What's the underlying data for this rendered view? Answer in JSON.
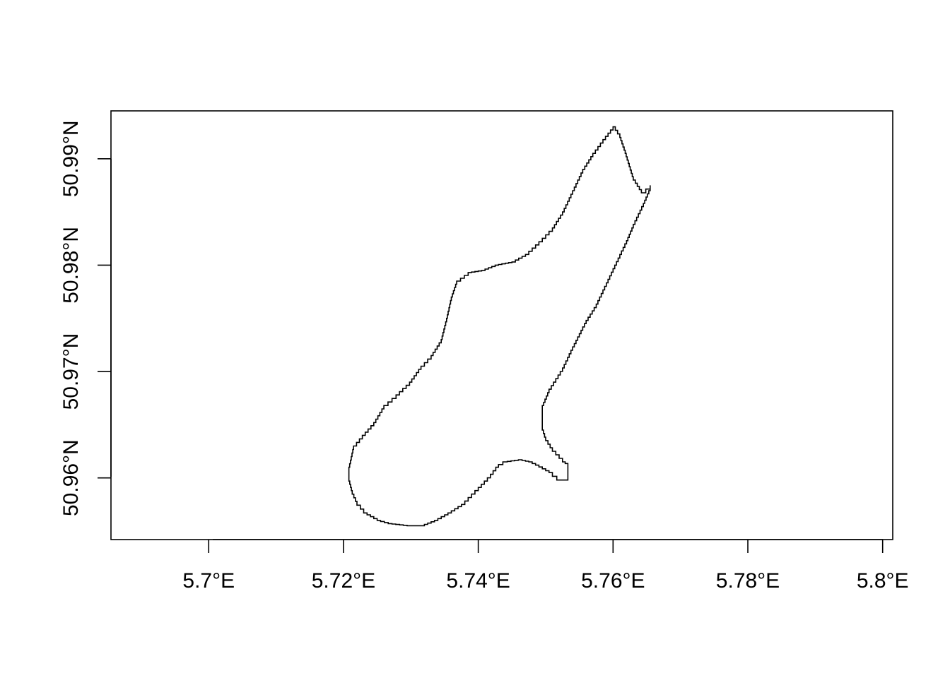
{
  "map": {
    "x_axis": {
      "ticks": [
        {
          "value": 5.7,
          "label": "5.7°E"
        },
        {
          "value": 5.72,
          "label": "5.72°E"
        },
        {
          "value": 5.74,
          "label": "5.74°E"
        },
        {
          "value": 5.76,
          "label": "5.76°E"
        },
        {
          "value": 5.78,
          "label": "5.78°E"
        },
        {
          "value": 5.8,
          "label": "5.8°E"
        }
      ]
    },
    "y_axis": {
      "ticks": [
        {
          "value": 50.96,
          "label": "50.96°N"
        },
        {
          "value": 50.97,
          "label": "50.97°N"
        },
        {
          "value": 50.98,
          "label": "50.98°N"
        },
        {
          "value": 50.99,
          "label": "50.99°N"
        }
      ]
    },
    "extent": {
      "lon_range": [
        5.6855,
        5.8015
      ],
      "lat_range": [
        50.9542,
        50.9945
      ]
    },
    "boundary": {
      "line_color": "#000000",
      "fill": "none",
      "coordinates_lonlat": [
        [
          5.76,
          50.993
        ],
        [
          5.761,
          50.992
        ],
        [
          5.7618,
          50.9905
        ],
        [
          5.763,
          50.988
        ],
        [
          5.7642,
          50.9868
        ],
        [
          5.7655,
          50.9875
        ],
        [
          5.7655,
          50.987
        ],
        [
          5.7645,
          50.9855
        ],
        [
          5.763,
          50.9835
        ],
        [
          5.762,
          50.982
        ],
        [
          5.7605,
          50.98
        ],
        [
          5.759,
          50.978
        ],
        [
          5.7575,
          50.976
        ],
        [
          5.756,
          50.9745
        ],
        [
          5.754,
          50.972
        ],
        [
          5.7525,
          50.97
        ],
        [
          5.7505,
          50.968
        ],
        [
          5.7495,
          50.9665
        ],
        [
          5.7495,
          50.9645
        ],
        [
          5.75,
          50.9635
        ],
        [
          5.751,
          50.9625
        ],
        [
          5.7525,
          50.9615
        ],
        [
          5.7533,
          50.9612
        ],
        [
          5.7533,
          50.9598
        ],
        [
          5.7523,
          50.9598
        ],
        [
          5.751,
          50.9605
        ],
        [
          5.749,
          50.9612
        ],
        [
          5.748,
          50.9615
        ],
        [
          5.7465,
          50.9617
        ],
        [
          5.7443,
          50.9615
        ],
        [
          5.743,
          50.961
        ],
        [
          5.7418,
          50.96
        ],
        [
          5.74,
          50.9588
        ],
        [
          5.738,
          50.9575
        ],
        [
          5.736,
          50.9567
        ],
        [
          5.734,
          50.956
        ],
        [
          5.732,
          50.9555
        ],
        [
          5.73,
          50.9555
        ],
        [
          5.7272,
          50.9557
        ],
        [
          5.7255,
          50.956
        ],
        [
          5.7235,
          50.9567
        ],
        [
          5.722,
          50.9578
        ],
        [
          5.7213,
          50.9588
        ],
        [
          5.7208,
          50.96
        ],
        [
          5.7208,
          50.961
        ],
        [
          5.7215,
          50.963
        ],
        [
          5.7228,
          50.964
        ],
        [
          5.7245,
          50.9652
        ],
        [
          5.726,
          50.9668
        ],
        [
          5.7278,
          50.9678
        ],
        [
          5.7298,
          50.969
        ],
        [
          5.7315,
          50.9705
        ],
        [
          5.733,
          50.9715
        ],
        [
          5.7345,
          50.973
        ],
        [
          5.7353,
          50.975
        ],
        [
          5.736,
          50.977
        ],
        [
          5.7368,
          50.9785
        ],
        [
          5.7385,
          50.9793
        ],
        [
          5.7405,
          50.9795
        ],
        [
          5.7425,
          50.98
        ],
        [
          5.745,
          50.9803
        ],
        [
          5.747,
          50.981
        ],
        [
          5.749,
          50.9822
        ],
        [
          5.751,
          50.9835
        ],
        [
          5.7525,
          50.985
        ],
        [
          5.754,
          50.987
        ],
        [
          5.7555,
          50.989
        ],
        [
          5.757,
          50.9905
        ],
        [
          5.7585,
          50.9918
        ],
        [
          5.76,
          50.993
        ]
      ]
    }
  }
}
